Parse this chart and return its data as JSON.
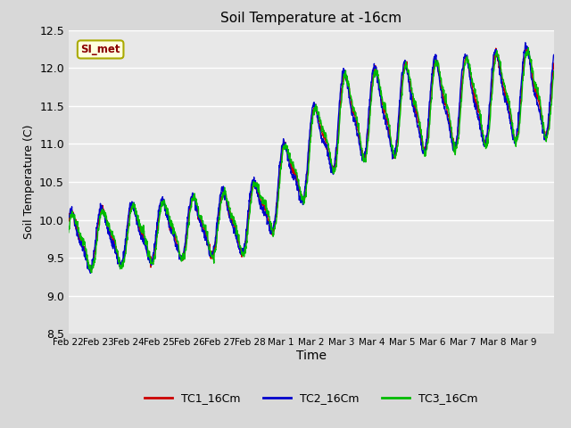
{
  "title": "Soil Temperature at -16cm",
  "xlabel": "Time",
  "ylabel": "Soil Temperature (C)",
  "ylim": [
    8.5,
    12.5
  ],
  "legend_label": "SI_met",
  "series": {
    "TC1_16Cm": {
      "color": "#cc0000",
      "label": "TC1_16Cm"
    },
    "TC2_16Cm": {
      "color": "#0000cc",
      "label": "TC2_16Cm"
    },
    "TC3_16Cm": {
      "color": "#00bb00",
      "label": "TC3_16Cm"
    }
  },
  "x_tick_labels": [
    "Feb 22",
    "Feb 23",
    "Feb 24",
    "Feb 25",
    "Feb 26",
    "Feb 27",
    "Feb 28",
    "Mar 1",
    "Mar 2",
    "Mar 3",
    "Mar 4",
    "Mar 5",
    "Mar 6",
    "Mar 7",
    "Mar 8",
    "Mar 9"
  ],
  "yticks": [
    8.5,
    9.0,
    9.5,
    10.0,
    10.5,
    11.0,
    11.5,
    12.0,
    12.5
  ],
  "fig_facecolor": "#d8d8d8",
  "ax_facecolor": "#e8e8e8"
}
